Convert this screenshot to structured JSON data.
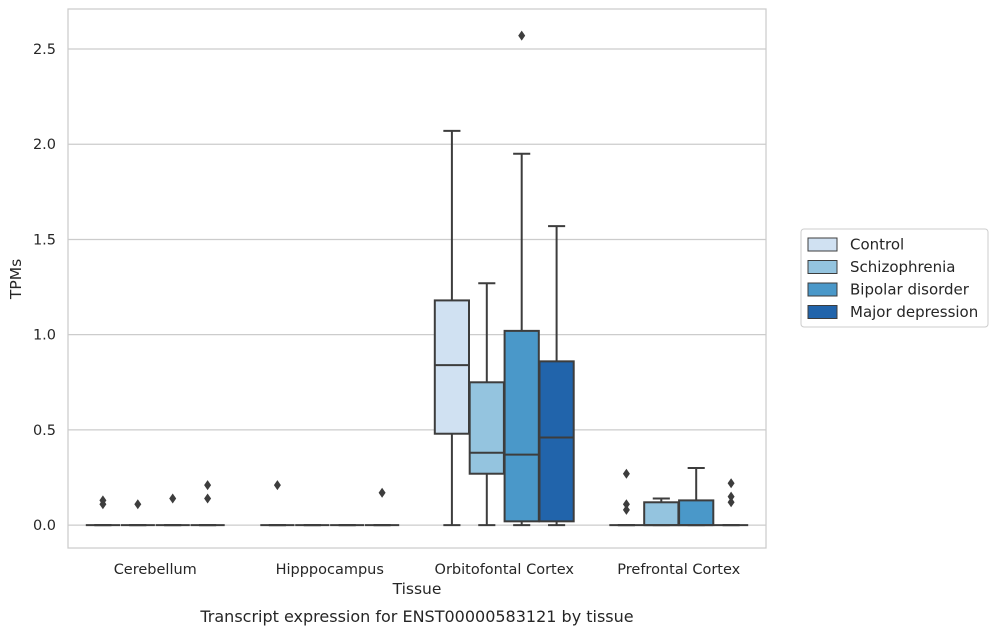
{
  "chart_data": {
    "type": "box",
    "xlabel": "Tissue",
    "ylabel": "TPMs",
    "caption": "Transcript expression for ENST00000583121 by tissue",
    "ylim": [
      -0.12,
      2.71
    ],
    "yticks": [
      0.0,
      0.5,
      1.0,
      1.5,
      2.0,
      2.5
    ],
    "ytick_labels": [
      "0.0",
      "0.5",
      "1.0",
      "1.5",
      "2.0",
      "2.5"
    ],
    "grid": "horizontal",
    "legend_position": "right",
    "categories": [
      "Cerebellum",
      "Hipppocampus",
      "Orbitofontal Cortex",
      "Prefrontal Cortex"
    ],
    "series": [
      {
        "name": "Control",
        "color": "#d0e1f2",
        "boxes": [
          {
            "q1": 0,
            "median": 0,
            "q3": 0,
            "whisker_low": 0,
            "whisker_high": 0,
            "outliers": [
              0.11,
              0.13
            ]
          },
          {
            "q1": 0,
            "median": 0,
            "q3": 0,
            "whisker_low": 0,
            "whisker_high": 0,
            "outliers": [
              0.21
            ]
          },
          {
            "q1": 0.48,
            "median": 0.84,
            "q3": 1.18,
            "whisker_low": 0.0,
            "whisker_high": 2.07,
            "outliers": []
          },
          {
            "q1": 0,
            "median": 0,
            "q3": 0,
            "whisker_low": 0,
            "whisker_high": 0,
            "outliers": [
              0.08,
              0.11,
              0.27
            ]
          }
        ]
      },
      {
        "name": "Schizophrenia",
        "color": "#94c4df",
        "boxes": [
          {
            "q1": 0,
            "median": 0,
            "q3": 0,
            "whisker_low": 0,
            "whisker_high": 0,
            "outliers": [
              0.11
            ]
          },
          {
            "q1": 0,
            "median": 0,
            "q3": 0,
            "whisker_low": 0,
            "whisker_high": 0,
            "outliers": []
          },
          {
            "q1": 0.27,
            "median": 0.38,
            "q3": 0.75,
            "whisker_low": 0.0,
            "whisker_high": 1.27,
            "outliers": []
          },
          {
            "q1": 0.0,
            "median": 0.0,
            "q3": 0.12,
            "whisker_low": 0.0,
            "whisker_high": 0.14,
            "outliers": []
          }
        ]
      },
      {
        "name": "Bipolar disorder",
        "color": "#4a98c9",
        "boxes": [
          {
            "q1": 0,
            "median": 0,
            "q3": 0,
            "whisker_low": 0,
            "whisker_high": 0,
            "outliers": [
              0.14
            ]
          },
          {
            "q1": 0,
            "median": 0,
            "q3": 0,
            "whisker_low": 0,
            "whisker_high": 0,
            "outliers": []
          },
          {
            "q1": 0.02,
            "median": 0.37,
            "q3": 1.02,
            "whisker_low": 0.0,
            "whisker_high": 1.95,
            "outliers": [
              2.57
            ]
          },
          {
            "q1": 0.0,
            "median": 0.0,
            "q3": 0.13,
            "whisker_low": 0.0,
            "whisker_high": 0.3,
            "outliers": []
          }
        ]
      },
      {
        "name": "Major depression",
        "color": "#2164ab",
        "boxes": [
          {
            "q1": 0,
            "median": 0,
            "q3": 0,
            "whisker_low": 0,
            "whisker_high": 0,
            "outliers": [
              0.14,
              0.21
            ]
          },
          {
            "q1": 0,
            "median": 0,
            "q3": 0,
            "whisker_low": 0,
            "whisker_high": 0,
            "outliers": [
              0.17
            ]
          },
          {
            "q1": 0.02,
            "median": 0.46,
            "q3": 0.86,
            "whisker_low": 0.0,
            "whisker_high": 1.57,
            "outliers": []
          },
          {
            "q1": 0,
            "median": 0,
            "q3": 0,
            "whisker_low": 0,
            "whisker_high": 0,
            "outliers": [
              0.12,
              0.15,
              0.22
            ]
          }
        ]
      }
    ]
  }
}
